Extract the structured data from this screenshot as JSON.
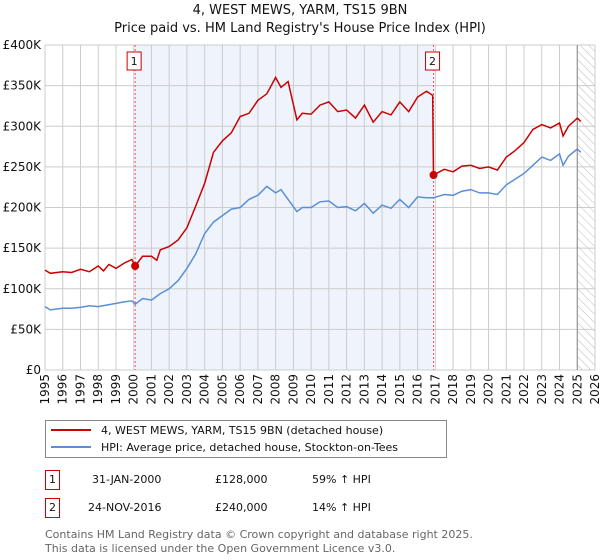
{
  "chart_data": {
    "type": "line",
    "title": "4, WEST MEWS, YARM, TS15 9BN",
    "subtitle": "Price paid vs. HM Land Registry's House Price Index (HPI)",
    "xlim": [
      1995,
      2026
    ],
    "ylim": [
      0,
      400000
    ],
    "x_ticks": [
      "1995",
      "1996",
      "1997",
      "1998",
      "1999",
      "2000",
      "2001",
      "2002",
      "2003",
      "2004",
      "2005",
      "2006",
      "2007",
      "2008",
      "2009",
      "2010",
      "2011",
      "2012",
      "2013",
      "2014",
      "2015",
      "2016",
      "2017",
      "2018",
      "2019",
      "2020",
      "2021",
      "2022",
      "2023",
      "2024",
      "2025",
      "2026"
    ],
    "y_ticks": [
      {
        "v": 0,
        "label": "£0"
      },
      {
        "v": 50000,
        "label": "£50K"
      },
      {
        "v": 100000,
        "label": "£100K"
      },
      {
        "v": 150000,
        "label": "£150K"
      },
      {
        "v": 200000,
        "label": "£200K"
      },
      {
        "v": 250000,
        "label": "£250K"
      },
      {
        "v": 300000,
        "label": "£300K"
      },
      {
        "v": 350000,
        "label": "£350K"
      },
      {
        "v": 400000,
        "label": "£400K"
      }
    ],
    "grid": true,
    "shaded_range": [
      2000.08,
      2016.9
    ],
    "forecast_hatch_from": 2025.0,
    "series": [
      {
        "name": "4, WEST MEWS, YARM, TS15 9BN (detached house)",
        "color": "#cc0000",
        "x": [
          1995,
          1995.3,
          1996,
          1996.5,
          1997,
          1997.5,
          1998,
          1998.3,
          1998.6,
          1999,
          1999.5,
          1999.9,
          2000.08,
          2000.5,
          2001,
          2001.3,
          2001.5,
          2002,
          2002.5,
          2003,
          2003.5,
          2004,
          2004.5,
          2005,
          2005.5,
          2006,
          2006.5,
          2007,
          2007.5,
          2008,
          2008.3,
          2008.7,
          2009.2,
          2009.5,
          2010,
          2010.5,
          2011,
          2011.5,
          2012,
          2012.5,
          2013,
          2013.5,
          2014,
          2014.5,
          2015,
          2015.5,
          2016,
          2016.5,
          2016.85,
          2016.9,
          2017.5,
          2018,
          2018.5,
          2019,
          2019.5,
          2020,
          2020.5,
          2021,
          2021.5,
          2022,
          2022.5,
          2023,
          2023.5,
          2024,
          2024.2,
          2024.5,
          2025,
          2025.2
        ],
        "y": [
          123000,
          119000,
          121000,
          120000,
          124000,
          121000,
          128000,
          122000,
          130000,
          125000,
          132000,
          136000,
          128000,
          140000,
          140000,
          135000,
          148000,
          152000,
          160000,
          175000,
          202000,
          230000,
          268000,
          282000,
          292000,
          312000,
          316000,
          332000,
          340000,
          360000,
          348000,
          355000,
          308000,
          316000,
          315000,
          326000,
          330000,
          318000,
          320000,
          310000,
          326000,
          305000,
          318000,
          314000,
          330000,
          318000,
          336000,
          343000,
          338000,
          240000,
          247000,
          244000,
          251000,
          252000,
          248000,
          250000,
          246000,
          262000,
          270000,
          280000,
          296000,
          302000,
          298000,
          304000,
          288000,
          300000,
          310000,
          306000
        ]
      },
      {
        "name": "HPI: Average price, detached house, Stockton-on-Tees",
        "color": "#5b8fd4",
        "x": [
          1995,
          1995.3,
          1996,
          1996.5,
          1997,
          1997.5,
          1998,
          1998.5,
          1999,
          1999.5,
          1999.9,
          2000.08,
          2000.5,
          2001,
          2001.5,
          2002,
          2002.5,
          2003,
          2003.5,
          2004,
          2004.5,
          2005,
          2005.5,
          2006,
          2006.5,
          2007,
          2007.5,
          2008,
          2008.3,
          2008.7,
          2009.2,
          2009.5,
          2010,
          2010.5,
          2011,
          2011.5,
          2012,
          2012.5,
          2013,
          2013.5,
          2014,
          2014.5,
          2015,
          2015.5,
          2016,
          2016.5,
          2016.9,
          2017.5,
          2018,
          2018.5,
          2019,
          2019.5,
          2020,
          2020.5,
          2021,
          2021.5,
          2022,
          2022.5,
          2023,
          2023.5,
          2024,
          2024.2,
          2024.5,
          2025,
          2025.2
        ],
        "y": [
          78000,
          74000,
          76000,
          76000,
          77000,
          79000,
          78000,
          80000,
          82000,
          84000,
          85000,
          81000,
          88000,
          86000,
          94000,
          100000,
          110000,
          125000,
          143000,
          168000,
          182000,
          190000,
          198000,
          200000,
          210000,
          215000,
          226000,
          218000,
          222000,
          210000,
          195000,
          200000,
          200000,
          207000,
          208000,
          200000,
          201000,
          196000,
          205000,
          193000,
          203000,
          199000,
          210000,
          200000,
          213000,
          212000,
          212000,
          216000,
          215000,
          220000,
          222000,
          218000,
          218000,
          216000,
          228000,
          235000,
          242000,
          252000,
          262000,
          258000,
          266000,
          252000,
          263000,
          272000,
          268000
        ]
      }
    ],
    "annotations": [
      {
        "label": "1",
        "x": 2000.08,
        "y": 128000
      },
      {
        "label": "2",
        "x": 2016.9,
        "y": 240000
      }
    ]
  },
  "legend": {
    "red": "4, WEST MEWS, YARM, TS15 9BN (detached house)",
    "blue": "HPI: Average price, detached house, Stockton-on-Tees"
  },
  "transactions": [
    {
      "num": "1",
      "date": "31-JAN-2000",
      "price": "£128,000",
      "hpi": "59% ↑ HPI"
    },
    {
      "num": "2",
      "date": "24-NOV-2016",
      "price": "£240,000",
      "hpi": "14% ↑ HPI"
    }
  ],
  "footer": {
    "line1": "Contains HM Land Registry data © Crown copyright and database right 2025.",
    "line2": "This data is licensed under the Open Government Licence v3.0."
  }
}
